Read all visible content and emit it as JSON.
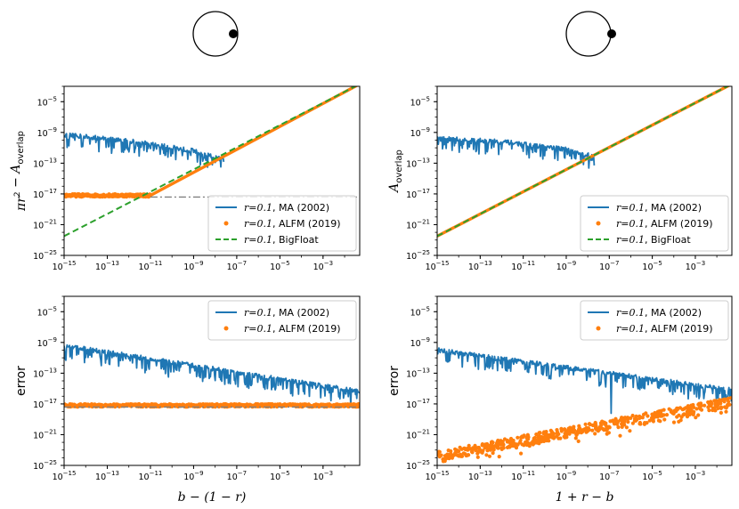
{
  "figure": {
    "icons": [
      {
        "name": "circle-with-inner-dot-icon",
        "dot": "inside"
      },
      {
        "name": "circle-with-outer-dot-icon",
        "dot": "outside"
      }
    ]
  },
  "chart_data": [
    {
      "id": "top-left",
      "type": "line",
      "xscale": "log",
      "yscale": "log",
      "xlim": [
        1e-15,
        0.05
      ],
      "ylim": [
        1e-25,
        0.001
      ],
      "xticks": [
        -15,
        -13,
        -11,
        -9,
        -7,
        -5,
        -3
      ],
      "yticks": [
        -25,
        -21,
        -17,
        -13,
        -9,
        -5
      ],
      "ylabel": "πr² − A_overlap",
      "ylabel_parts": {
        "a": "π",
        "b": "r",
        "sup": "2",
        "c": " − ",
        "d": "A",
        "sub": "overlap"
      },
      "xlabel": "",
      "legend": [
        "r=0.1, MA (2002)",
        "r=0.1, ALFM (2019)",
        "r=0.1, BigFloat"
      ],
      "legend_parts": [
        {
          "math": "r=0.1",
          "text": ", MA (2002)"
        },
        {
          "math": "r=0.1",
          "text": ", ALFM (2019)"
        },
        {
          "math": "r=0.1",
          "text": ", BigFloat"
        }
      ],
      "legend_position": "lower-right",
      "series": [
        {
          "name": "MA (2002)",
          "style": "noisy-line",
          "color": "#1f77b4",
          "x_log": [
            -15,
            -12,
            -9,
            -7.6
          ],
          "y_log": [
            -9.3,
            -10.1,
            -11.4,
            -12.6
          ]
        },
        {
          "name": "ALFM (2019)",
          "style": "dots",
          "color": "#ff7f0e",
          "x_log": [
            -15,
            -11
          ],
          "y_log": [
            -17.2,
            -17.2
          ]
        },
        {
          "name": "true-area",
          "style": "solid-line",
          "color": "#ff7f0e",
          "x_log": [
            -11,
            -1.3
          ],
          "y_log": [
            -17.2,
            -2.7
          ]
        },
        {
          "name": "BigFloat",
          "style": "dashed-line",
          "color": "#2ca02c",
          "x_log": [
            -15,
            -1.3
          ],
          "y_log": [
            -22.5,
            -2.7
          ]
        },
        {
          "name": "precision-floor",
          "style": "dashdot-line",
          "color": "#808080",
          "x_log": [
            -11,
            -1.3
          ],
          "y_log": [
            -17.4,
            -17.4
          ]
        }
      ]
    },
    {
      "id": "top-right",
      "type": "line",
      "xscale": "log",
      "yscale": "log",
      "xlim": [
        1e-15,
        0.05
      ],
      "ylim": [
        1e-25,
        0.001
      ],
      "xticks": [
        -15,
        -13,
        -11,
        -9,
        -7,
        -5,
        -3
      ],
      "yticks": [
        -25,
        -21,
        -17,
        -13,
        -9,
        -5
      ],
      "ylabel": "A_overlap",
      "ylabel_parts": {
        "d": "A",
        "sub": "overlap"
      },
      "xlabel": "",
      "legend": [
        "r=0.1, MA (2002)",
        "r=0.1, ALFM (2019)",
        "r=0.1, BigFloat"
      ],
      "legend_parts": [
        {
          "math": "r=0.1",
          "text": ", MA (2002)"
        },
        {
          "math": "r=0.1",
          "text": ", ALFM (2019)"
        },
        {
          "math": "r=0.1",
          "text": ", BigFloat"
        }
      ],
      "legend_position": "lower-right",
      "series": [
        {
          "name": "MA (2002)",
          "style": "noisy-line",
          "color": "#1f77b4",
          "x_log": [
            -15,
            -12,
            -9,
            -7.7
          ],
          "y_log": [
            -9.8,
            -10.2,
            -11.2,
            -12.2
          ]
        },
        {
          "name": "ALFM (2019)",
          "style": "solid-line",
          "color": "#ff7f0e",
          "x_log": [
            -15,
            -1.3
          ],
          "y_log": [
            -22.5,
            -2.7
          ]
        },
        {
          "name": "BigFloat",
          "style": "dashed-line",
          "color": "#2ca02c",
          "x_log": [
            -15,
            -1.3
          ],
          "y_log": [
            -22.5,
            -2.7
          ]
        }
      ]
    },
    {
      "id": "bottom-left",
      "type": "line",
      "xscale": "log",
      "yscale": "log",
      "xlim": [
        1e-15,
        0.05
      ],
      "ylim": [
        1e-25,
        0.001
      ],
      "xticks": [
        -15,
        -13,
        -11,
        -9,
        -7,
        -5,
        -3
      ],
      "yticks": [
        -25,
        -21,
        -17,
        -13,
        -9,
        -5
      ],
      "ylabel": "error",
      "xlabel": "b − (1 − r)",
      "legend": [
        "r=0.1, MA (2002)",
        "r=0.1, ALFM (2019)"
      ],
      "legend_parts": [
        {
          "math": "r=0.1",
          "text": ", MA (2002)"
        },
        {
          "math": "r=0.1",
          "text": ", ALFM (2019)"
        }
      ],
      "legend_position": "top-right",
      "series": [
        {
          "name": "MA (2002)",
          "style": "noisy-line",
          "color": "#1f77b4",
          "x_log": [
            -15,
            -1.3
          ],
          "y_log": [
            -9.4,
            -15.4
          ]
        },
        {
          "name": "ALFM (2019)",
          "style": "dots",
          "color": "#ff7f0e",
          "x_log": [
            -15,
            -1.3
          ],
          "y_log": [
            -17.2,
            -17.2
          ]
        },
        {
          "name": "precision-floor",
          "style": "dashdot-line",
          "color": "#808080",
          "x_log": [
            -15,
            -1.3
          ],
          "y_log": [
            -17.4,
            -17.4
          ]
        }
      ]
    },
    {
      "id": "bottom-right",
      "type": "line",
      "xscale": "log",
      "yscale": "log",
      "xlim": [
        1e-15,
        0.05
      ],
      "ylim": [
        1e-25,
        0.001
      ],
      "xticks": [
        -15,
        -13,
        -11,
        -9,
        -7,
        -5,
        -3
      ],
      "yticks": [
        -25,
        -21,
        -17,
        -13,
        -9,
        -5
      ],
      "ylabel": "error",
      "xlabel": "1 + r − b",
      "legend": [
        "r=0.1, MA (2002)",
        "r=0.1, ALFM (2019)"
      ],
      "legend_parts": [
        {
          "math": "r=0.1",
          "text": ", MA (2002)"
        },
        {
          "math": "r=0.1",
          "text": ", ALFM (2019)"
        }
      ],
      "legend_position": "top-right",
      "series": [
        {
          "name": "MA (2002)",
          "style": "noisy-line",
          "color": "#1f77b4",
          "x_log": [
            -15,
            -1.3
          ],
          "y_log": [
            -10,
            -15.2
          ]
        },
        {
          "name": "ALFM (2019)",
          "style": "scatter-band",
          "color": "#ff7f0e",
          "x_log": [
            -15,
            -1.3
          ],
          "y_log": [
            -23.8,
            -16.8
          ]
        }
      ]
    }
  ]
}
